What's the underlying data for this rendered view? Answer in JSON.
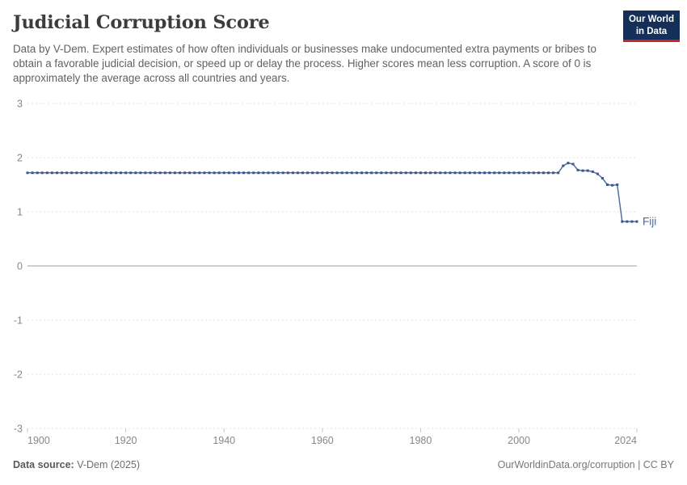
{
  "header": {
    "title": "Judicial Corruption Score",
    "subtitle": "Data by V-Dem. Expert estimates of how often individuals or businesses make undocumented extra payments or bribes to obtain a favorable judicial decision, or speed up or delay the process. Higher scores mean less corruption. A score of 0 is approximately the average across all countries and years.",
    "logo_line1": "Our World",
    "logo_line2": "in Data"
  },
  "chart_data": {
    "type": "line",
    "title": "Judicial Corruption Score",
    "x_start": 1900,
    "x_end": 2024,
    "x_step": 1,
    "x_ticks": [
      1900,
      1920,
      1940,
      1960,
      1980,
      2000,
      2024
    ],
    "y_ticks": [
      3,
      2,
      1,
      0,
      -1,
      -2,
      -3
    ],
    "ylim": [
      -3,
      3
    ],
    "xlabel": "",
    "ylabel": "",
    "grid": "horizontal dashed gridlines, solid zero line, dashed bottom axis with small year ticks",
    "legend_position": "label at end of line",
    "series": [
      {
        "name": "Fiji",
        "color": "#4c6a9c",
        "values": [
          1.72,
          1.72,
          1.72,
          1.72,
          1.72,
          1.72,
          1.72,
          1.72,
          1.72,
          1.72,
          1.72,
          1.72,
          1.72,
          1.72,
          1.72,
          1.72,
          1.72,
          1.72,
          1.72,
          1.72,
          1.72,
          1.72,
          1.72,
          1.72,
          1.72,
          1.72,
          1.72,
          1.72,
          1.72,
          1.72,
          1.72,
          1.72,
          1.72,
          1.72,
          1.72,
          1.72,
          1.72,
          1.72,
          1.72,
          1.72,
          1.72,
          1.72,
          1.72,
          1.72,
          1.72,
          1.72,
          1.72,
          1.72,
          1.72,
          1.72,
          1.72,
          1.72,
          1.72,
          1.72,
          1.72,
          1.72,
          1.72,
          1.72,
          1.72,
          1.72,
          1.72,
          1.72,
          1.72,
          1.72,
          1.72,
          1.72,
          1.72,
          1.72,
          1.72,
          1.72,
          1.72,
          1.72,
          1.72,
          1.72,
          1.72,
          1.72,
          1.72,
          1.72,
          1.72,
          1.72,
          1.72,
          1.72,
          1.72,
          1.72,
          1.72,
          1.72,
          1.72,
          1.72,
          1.72,
          1.72,
          1.72,
          1.72,
          1.72,
          1.72,
          1.72,
          1.72,
          1.72,
          1.72,
          1.72,
          1.72,
          1.72,
          1.72,
          1.72,
          1.72,
          1.72,
          1.72,
          1.72,
          1.72,
          1.72,
          1.85,
          1.9,
          1.88,
          1.77,
          1.76,
          1.76,
          1.74,
          1.7,
          1.62,
          1.5,
          1.49,
          1.5,
          0.82,
          0.82,
          0.82,
          0.82
        ]
      }
    ]
  },
  "footer": {
    "source_label": "Data source:",
    "source_value": "V-Dem (2025)",
    "credit": "OurWorldinData.org/corruption | CC BY"
  },
  "colors": {
    "line": "#5470a0",
    "marker": "#3b568f",
    "entity_label": "#4c6a9c",
    "grid": "#e2e2e2",
    "zero_line": "#9e9e9e",
    "axis_tick": "#c4c4c4",
    "axis_text": "#878787",
    "title_text": "#3c3c3c",
    "subtitle_text": "#616161",
    "logo_bg": "#143059",
    "logo_accent": "#c0272d"
  }
}
